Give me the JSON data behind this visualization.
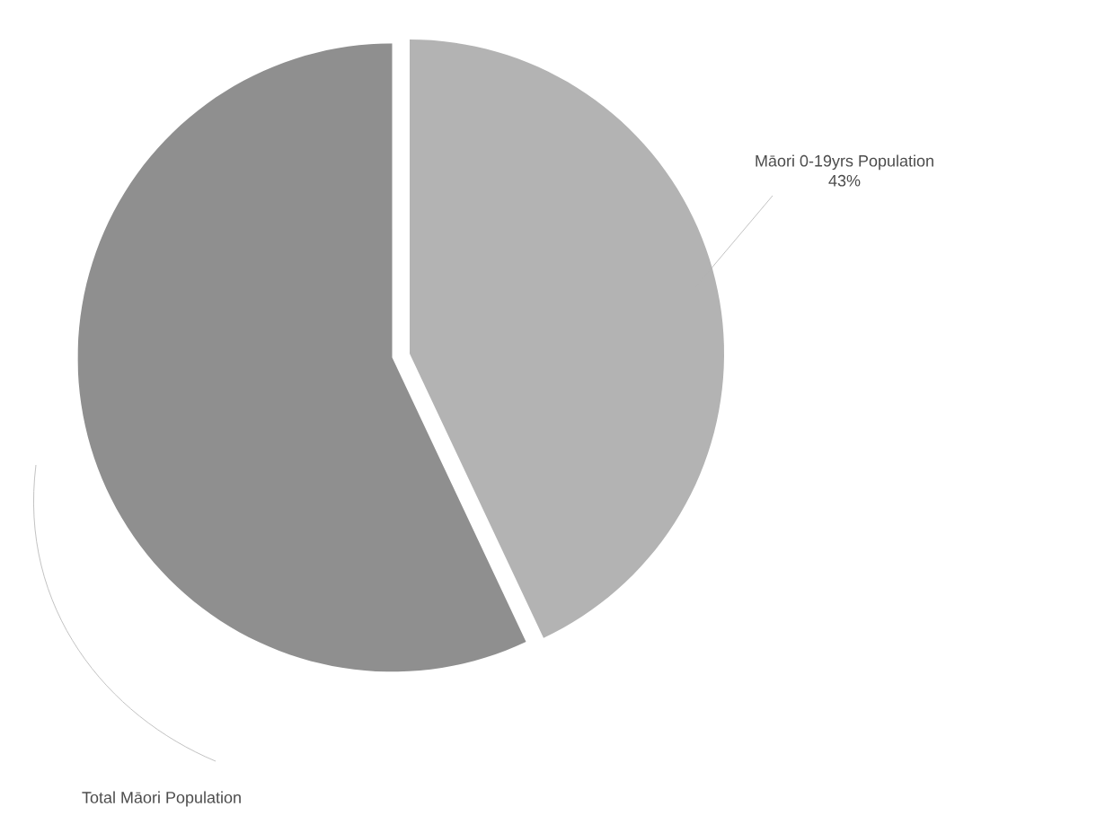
{
  "chart_data": {
    "type": "pie",
    "categories": [
      "Māori 0-19yrs Population",
      "Total Māori Population"
    ],
    "values": [
      43,
      57
    ],
    "colors": [
      "#b3b3b3",
      "#8f8f8f"
    ],
    "value_labels": [
      "43%",
      null
    ]
  }
}
